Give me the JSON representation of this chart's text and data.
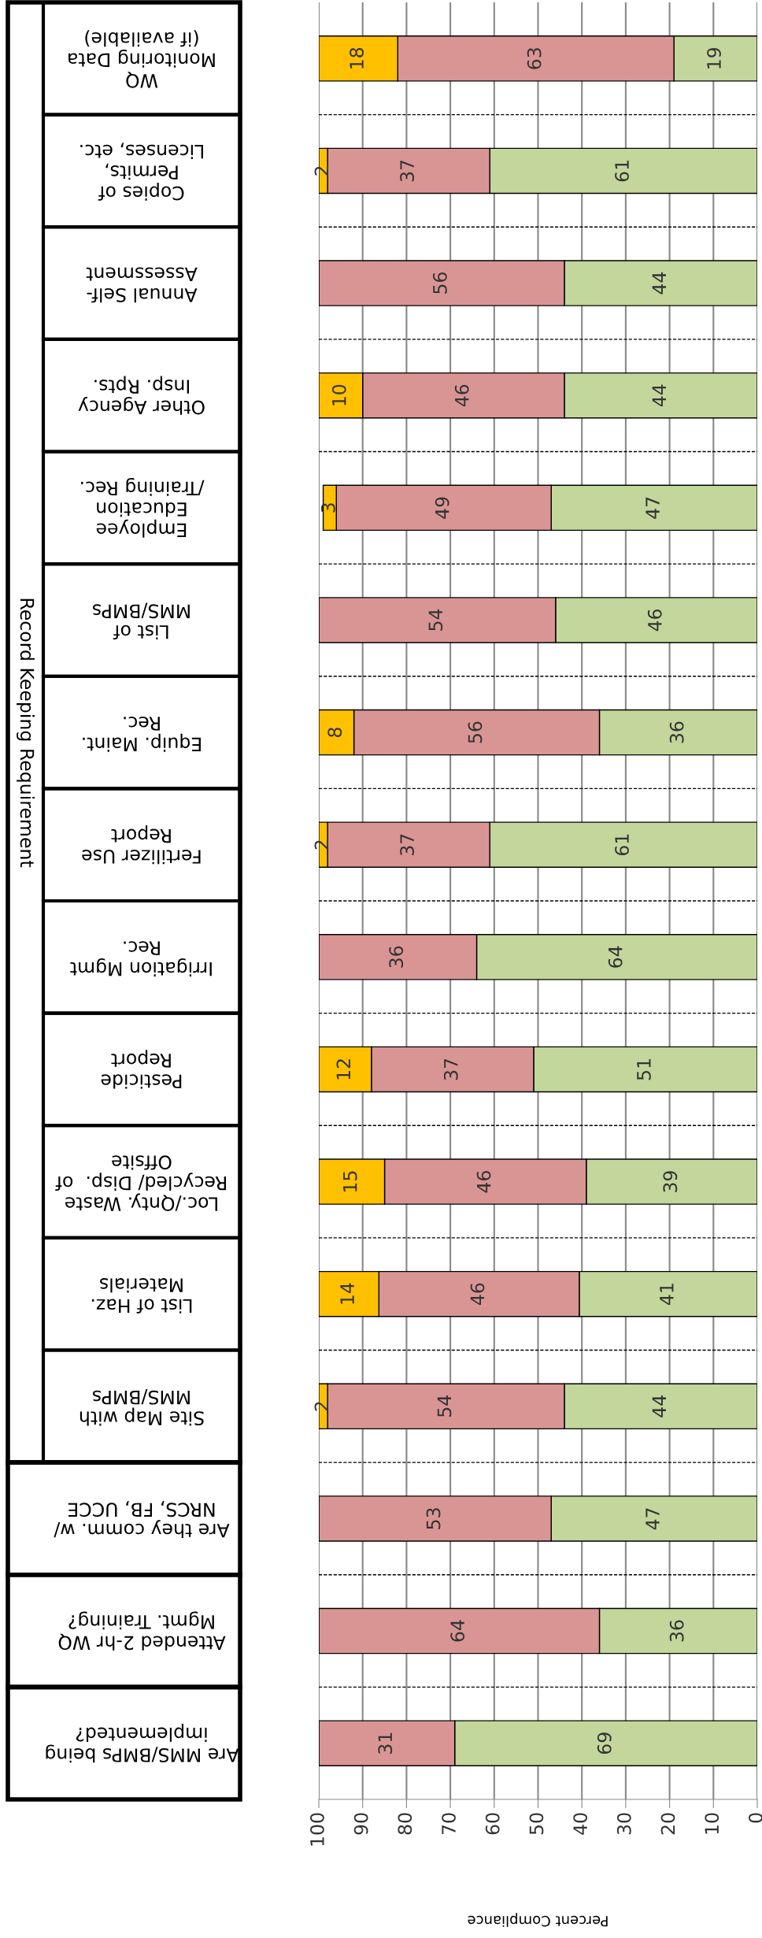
{
  "chart_data": {
    "type": "bar",
    "orientation": "horizontal",
    "stacked": true,
    "grid": "x",
    "legend": false,
    "xlabel": "Percent Compliance",
    "annotations": [
      "Record Keeping Requirement"
    ],
    "categories": [
      "WQ\nMonitoring Data\n(if available)",
      "Copies of\nPermits,\nLicenses, etc.",
      "Annual Self-\nAssessment",
      "Other Agency\nInsp. Rpts.",
      "Employee\nEducation\n/Training Rec.",
      "List of\nMMS/BMPs",
      "Equip. Maint.\nRec.",
      "Fertilizer Use\nReport",
      "Irrigation Mgmt\nRec.",
      "Pesticide\nReport",
      "Loc./Qnty. Waste\nRecycled/ Disp.  of\nOffsite",
      "List of Haz.\nMaterials",
      "Site Map with\nMMS/BMPs",
      "Are they comm. w/\nNRCS, FB, UCCE",
      "Attended 2-hr WQ\nMgmt. Training?",
      "Are MMS/BMPs being\nimplemented?"
    ],
    "xlim": [
      100,
      0
    ],
    "xticks": [
      0,
      10,
      20,
      30,
      40,
      50,
      60,
      70,
      80,
      90,
      100
    ],
    "series": [
      {
        "color": "#c3d69b",
        "values": [
          19,
          61,
          44,
          44,
          47,
          46,
          36,
          61,
          64,
          51,
          39,
          40.6,
          44,
          47,
          36,
          69
        ],
        "value_labels": [
          "19",
          "61",
          "44",
          "44",
          "47",
          "46",
          "36",
          "61",
          "64",
          "51",
          "39",
          "41",
          "44",
          "47",
          "36",
          "69"
        ]
      },
      {
        "color": "#d99594",
        "values": [
          63,
          37,
          56,
          46,
          49,
          54,
          56,
          37,
          36,
          37,
          46,
          45.7,
          54,
          53,
          64,
          31
        ],
        "value_labels": [
          "63",
          "37",
          "56",
          "46",
          "49",
          "54",
          "56",
          "37",
          "36",
          "37",
          "46",
          "46",
          "54",
          "53",
          "64",
          "31"
        ]
      },
      {
        "color": "#ffc000",
        "values": [
          18,
          2,
          null,
          10,
          3,
          null,
          8,
          2,
          null,
          12,
          15,
          13.7,
          2,
          null,
          null,
          null
        ],
        "value_labels": [
          "18",
          "2",
          null,
          "10",
          "3",
          null,
          "8",
          "2",
          null,
          "12",
          "15",
          "14",
          "2",
          null,
          null,
          null
        ]
      }
    ]
  }
}
